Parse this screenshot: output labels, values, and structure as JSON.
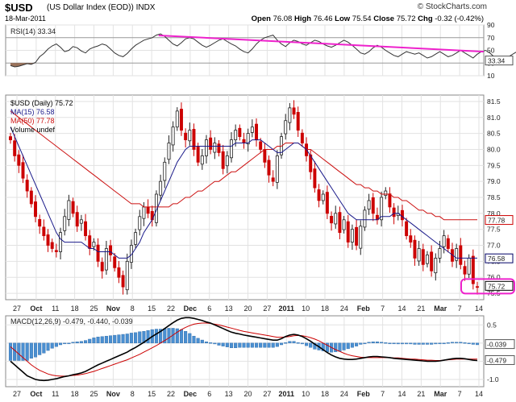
{
  "header": {
    "symbol": "$USD",
    "name": "(US Dollar Index (EOD)) INDX",
    "date": "18-Mar-2011",
    "brand": "© StockCharts.com",
    "open_label": "Open",
    "open": "76.08",
    "high_label": "High",
    "high": "76.46",
    "low_label": "Low",
    "low": "75.54",
    "close_label": "Close",
    "close": "75.72",
    "chg_label": "Chg",
    "chg": "-0.32 (-0.42%)"
  },
  "chart_data": [
    {
      "type": "line",
      "panel": "rsi",
      "legend": "RSI(14) 33.34",
      "ylim": [
        10,
        90
      ],
      "yticks": [
        90,
        70,
        50,
        30,
        10
      ],
      "overbought": 70,
      "oversold": 30,
      "last_value_label": "33.34",
      "series": [
        {
          "name": "RSI(14)",
          "color": "#333333",
          "values": [
            26,
            24,
            25,
            27,
            29,
            28,
            31,
            40,
            45,
            52,
            57,
            60,
            55,
            48,
            50,
            56,
            54,
            49,
            46,
            52,
            55,
            57,
            60,
            58,
            52,
            46,
            42,
            40,
            45,
            52,
            58,
            62,
            66,
            68,
            70,
            74,
            76,
            72,
            66,
            60,
            57,
            62,
            68,
            70,
            68,
            63,
            58,
            55,
            58,
            62,
            66,
            68,
            64,
            60,
            57,
            52,
            48,
            46,
            52,
            60,
            66,
            70,
            72,
            74,
            66,
            60,
            56,
            62,
            66,
            64,
            60,
            58,
            62,
            66,
            64,
            60,
            57,
            55,
            58,
            62,
            66,
            63,
            58,
            52,
            46,
            44,
            48,
            54,
            58,
            55,
            50,
            46,
            42,
            40,
            44,
            48,
            46,
            44,
            46,
            42,
            38,
            40,
            44,
            48,
            44,
            40,
            42,
            46,
            50,
            46,
            42,
            38,
            44,
            48,
            50,
            46,
            40,
            36,
            34,
            38,
            42,
            46,
            50,
            44,
            40,
            36,
            33
          ]
        },
        {
          "name": "RSI trendline",
          "color": "#ee22cc",
          "points": [
            [
              0.32,
              73.5
            ],
            [
              1.0,
              48
            ]
          ]
        }
      ]
    },
    {
      "type": "candlestick",
      "panel": "price",
      "legend": [
        "$USD (Daily) 75.72",
        "MA(15) 76.58",
        "MA(50) 77.78",
        "Volume undef"
      ],
      "ylim": [
        75.3,
        81.7
      ],
      "yticks": [
        75.5,
        76.0,
        76.5,
        77.0,
        77.5,
        78.0,
        78.5,
        79.0,
        79.5,
        80.0,
        80.5,
        81.0,
        81.5
      ],
      "x_labels": [
        "27",
        "Oct",
        "11",
        "18",
        "25",
        "Nov",
        "8",
        "15",
        "22",
        "Dec",
        "6",
        "13",
        "20",
        "27",
        "2011",
        "10",
        "18",
        "24",
        "Feb",
        "7",
        "14",
        "21",
        "Mar",
        "7",
        "14"
      ],
      "x_label_positions": [
        0.0,
        0.05,
        0.11,
        0.165,
        0.225,
        0.29,
        0.345,
        0.4,
        0.455,
        0.52,
        0.575,
        0.635,
        0.69,
        0.745,
        0.805,
        0.86,
        0.915,
        0.965,
        1.035,
        1.09,
        1.145,
        1.2,
        1.265,
        1.32,
        1.375
      ],
      "close": [
        80.3,
        79.8,
        79.5,
        79.1,
        78.7,
        78.3,
        77.9,
        77.6,
        77.3,
        77.0,
        76.9,
        76.8,
        77.4,
        77.9,
        78.4,
        78.0,
        77.6,
        77.8,
        77.3,
        76.9,
        77.1,
        76.5,
        76.2,
        76.9,
        76.7,
        76.3,
        76.0,
        75.7,
        76.5,
        77.0,
        77.4,
        77.9,
        78.2,
        78.0,
        77.8,
        78.6,
        79.0,
        79.6,
        80.2,
        80.7,
        81.2,
        80.6,
        80.3,
        80.6,
        80.0,
        79.6,
        79.8,
        80.3,
        80.0,
        80.2,
        79.9,
        79.4,
        79.8,
        80.3,
        80.6,
        80.4,
        80.2,
        80.5,
        80.7,
        80.3,
        80.0,
        79.6,
        79.2,
        79.0,
        79.8,
        80.4,
        80.9,
        81.3,
        81.1,
        80.6,
        80.2,
        79.8,
        79.3,
        78.8,
        78.4,
        78.6,
        78.0,
        77.7,
        78.0,
        77.4,
        77.8,
        77.1,
        77.5,
        77.0,
        77.6,
        78.1,
        78.4,
        78.0,
        77.8,
        78.5,
        78.7,
        78.2,
        77.9,
        78.0,
        77.8,
        77.3,
        77.1,
        76.6,
        76.9,
        76.4,
        76.7,
        76.2,
        76.6,
        76.9,
        77.3,
        76.9,
        76.5,
        76.9,
        76.4,
        76.1,
        76.6,
        75.8,
        75.7
      ],
      "ma15": [
        80.7,
        80.4,
        80.1,
        79.8,
        79.5,
        79.2,
        78.9,
        78.6,
        78.3,
        78.0,
        77.7,
        77.4,
        77.2,
        77.1,
        77.1,
        77.1,
        77.1,
        77.1,
        77.0,
        76.9,
        76.9,
        76.8,
        76.8,
        76.8,
        76.8,
        76.7,
        76.6,
        76.6,
        76.6,
        76.7,
        76.9,
        77.1,
        77.4,
        77.6,
        77.8,
        78.1,
        78.4,
        78.7,
        79.0,
        79.3,
        79.6,
        79.8,
        80.0,
        80.1,
        80.1,
        80.1,
        80.1,
        80.1,
        80.1,
        80.1,
        80.1,
        80.1,
        80.1,
        80.1,
        80.2,
        80.2,
        80.2,
        80.2,
        80.3,
        80.3,
        80.3,
        80.2,
        80.1,
        80.0,
        79.9,
        79.9,
        80.0,
        80.1,
        80.2,
        80.2,
        80.1,
        80.0,
        79.8,
        79.6,
        79.4,
        79.2,
        79.0,
        78.8,
        78.6,
        78.4,
        78.2,
        78.0,
        77.9,
        77.8,
        77.8,
        77.8,
        77.8,
        77.8,
        77.8,
        77.9,
        77.9,
        77.9,
        78.0,
        78.0,
        77.9,
        77.8,
        77.7,
        77.6,
        77.5,
        77.4,
        77.3,
        77.2,
        77.1,
        77.0,
        76.9,
        76.8,
        76.7,
        76.6,
        76.6,
        76.6,
        76.6,
        76.6,
        76.6
      ],
      "ma50": [
        81.2,
        81.1,
        81.0,
        80.9,
        80.8,
        80.7,
        80.6,
        80.5,
        80.4,
        80.3,
        80.2,
        80.1,
        80.0,
        79.9,
        79.8,
        79.7,
        79.6,
        79.5,
        79.4,
        79.3,
        79.2,
        79.1,
        79.0,
        78.9,
        78.8,
        78.7,
        78.6,
        78.5,
        78.4,
        78.3,
        78.3,
        78.3,
        78.2,
        78.2,
        78.2,
        78.2,
        78.2,
        78.2,
        78.2,
        78.3,
        78.3,
        78.4,
        78.5,
        78.5,
        78.6,
        78.7,
        78.7,
        78.8,
        78.9,
        79.0,
        79.0,
        79.1,
        79.2,
        79.3,
        79.3,
        79.4,
        79.5,
        79.6,
        79.7,
        79.8,
        79.9,
        80.0,
        80.0,
        80.0,
        80.1,
        80.1,
        80.2,
        80.2,
        80.2,
        80.2,
        80.1,
        80.0,
        80.0,
        79.9,
        79.8,
        79.7,
        79.6,
        79.5,
        79.4,
        79.3,
        79.2,
        79.1,
        79.0,
        78.9,
        78.9,
        78.8,
        78.8,
        78.7,
        78.7,
        78.6,
        78.6,
        78.6,
        78.5,
        78.5,
        78.4,
        78.4,
        78.3,
        78.2,
        78.1,
        78.1,
        78.0,
        78.0,
        77.9,
        77.9,
        77.8,
        77.8,
        77.8,
        77.8,
        77.8,
        77.8,
        77.8,
        77.8,
        77.8
      ],
      "last_labels": [
        {
          "text": "77.78",
          "value": 77.78,
          "color": "#cc0000"
        },
        {
          "text": "76.58",
          "value": 76.58,
          "color": "#000066"
        },
        {
          "text": "75.72",
          "value": 75.72,
          "color": "#000000",
          "highlight": "#ee22cc"
        }
      ],
      "colors": {
        "up": "#ffffff",
        "down": "#cc0000",
        "ma15": "#1a1a8a",
        "ma50": "#cc1111"
      }
    },
    {
      "type": "line",
      "panel": "macd",
      "legend": "MACD(12,26,9) -0.479, -0.440, -0.039",
      "ylim": [
        -1.2,
        0.75
      ],
      "yticks": [
        0.5,
        0.0,
        -0.5,
        -1.0
      ],
      "last_labels": [
        {
          "text": "-0.039",
          "value": -0.039
        },
        {
          "text": "-0.479",
          "value": -0.479
        }
      ],
      "series": [
        {
          "name": "MACD",
          "color": "#000000",
          "values": [
            -0.5,
            -0.6,
            -0.7,
            -0.8,
            -0.9,
            -0.95,
            -1.0,
            -1.02,
            -1.03,
            -1.02,
            -1.0,
            -0.98,
            -0.95,
            -0.92,
            -0.9,
            -0.87,
            -0.85,
            -0.82,
            -0.78,
            -0.72,
            -0.66,
            -0.6,
            -0.55,
            -0.5,
            -0.45,
            -0.4,
            -0.35,
            -0.3,
            -0.25,
            -0.18,
            -0.12,
            -0.05,
            0.02,
            0.1,
            0.18,
            0.25,
            0.32,
            0.4,
            0.48,
            0.56,
            0.63,
            0.68,
            0.7,
            0.7,
            0.68,
            0.65,
            0.62,
            0.58,
            0.55,
            0.5,
            0.45,
            0.4,
            0.35,
            0.3,
            0.27,
            0.25,
            0.22,
            0.2,
            0.18,
            0.16,
            0.14,
            0.12,
            0.1,
            0.08,
            0.08,
            0.12,
            0.18,
            0.22,
            0.24,
            0.22,
            0.18,
            0.12,
            0.05,
            -0.03,
            -0.1,
            -0.18,
            -0.26,
            -0.33,
            -0.38,
            -0.42,
            -0.44,
            -0.45,
            -0.45,
            -0.44,
            -0.42,
            -0.4,
            -0.38,
            -0.37,
            -0.37,
            -0.38,
            -0.39,
            -0.4,
            -0.42,
            -0.43,
            -0.44,
            -0.45,
            -0.46,
            -0.47,
            -0.48,
            -0.49,
            -0.5,
            -0.5,
            -0.5,
            -0.49,
            -0.47,
            -0.45,
            -0.43,
            -0.42,
            -0.42,
            -0.43,
            -0.45,
            -0.47,
            -0.479
          ]
        },
        {
          "name": "Signal",
          "color": "#cc0000",
          "values": [
            -0.1,
            -0.2,
            -0.3,
            -0.4,
            -0.5,
            -0.6,
            -0.68,
            -0.75,
            -0.8,
            -0.85,
            -0.88,
            -0.9,
            -0.91,
            -0.91,
            -0.9,
            -0.89,
            -0.88,
            -0.86,
            -0.84,
            -0.81,
            -0.78,
            -0.74,
            -0.7,
            -0.66,
            -0.62,
            -0.58,
            -0.54,
            -0.5,
            -0.46,
            -0.41,
            -0.36,
            -0.31,
            -0.25,
            -0.19,
            -0.13,
            -0.07,
            0.0,
            0.07,
            0.14,
            0.22,
            0.3,
            0.37,
            0.43,
            0.48,
            0.52,
            0.54,
            0.55,
            0.55,
            0.54,
            0.52,
            0.5,
            0.47,
            0.44,
            0.41,
            0.38,
            0.35,
            0.32,
            0.3,
            0.28,
            0.26,
            0.24,
            0.22,
            0.2,
            0.18,
            0.16,
            0.16,
            0.17,
            0.18,
            0.2,
            0.21,
            0.2,
            0.18,
            0.15,
            0.11,
            0.06,
            0.0,
            -0.06,
            -0.12,
            -0.18,
            -0.23,
            -0.28,
            -0.32,
            -0.35,
            -0.37,
            -0.39,
            -0.4,
            -0.4,
            -0.4,
            -0.4,
            -0.4,
            -0.4,
            -0.4,
            -0.41,
            -0.41,
            -0.42,
            -0.43,
            -0.44,
            -0.44,
            -0.45,
            -0.46,
            -0.47,
            -0.47,
            -0.48,
            -0.48,
            -0.47,
            -0.46,
            -0.45,
            -0.44,
            -0.44,
            -0.44,
            -0.44,
            -0.44,
            -0.44
          ]
        },
        {
          "name": "Histogram",
          "color": "#4a8fd1",
          "type": "bar"
        }
      ]
    }
  ]
}
